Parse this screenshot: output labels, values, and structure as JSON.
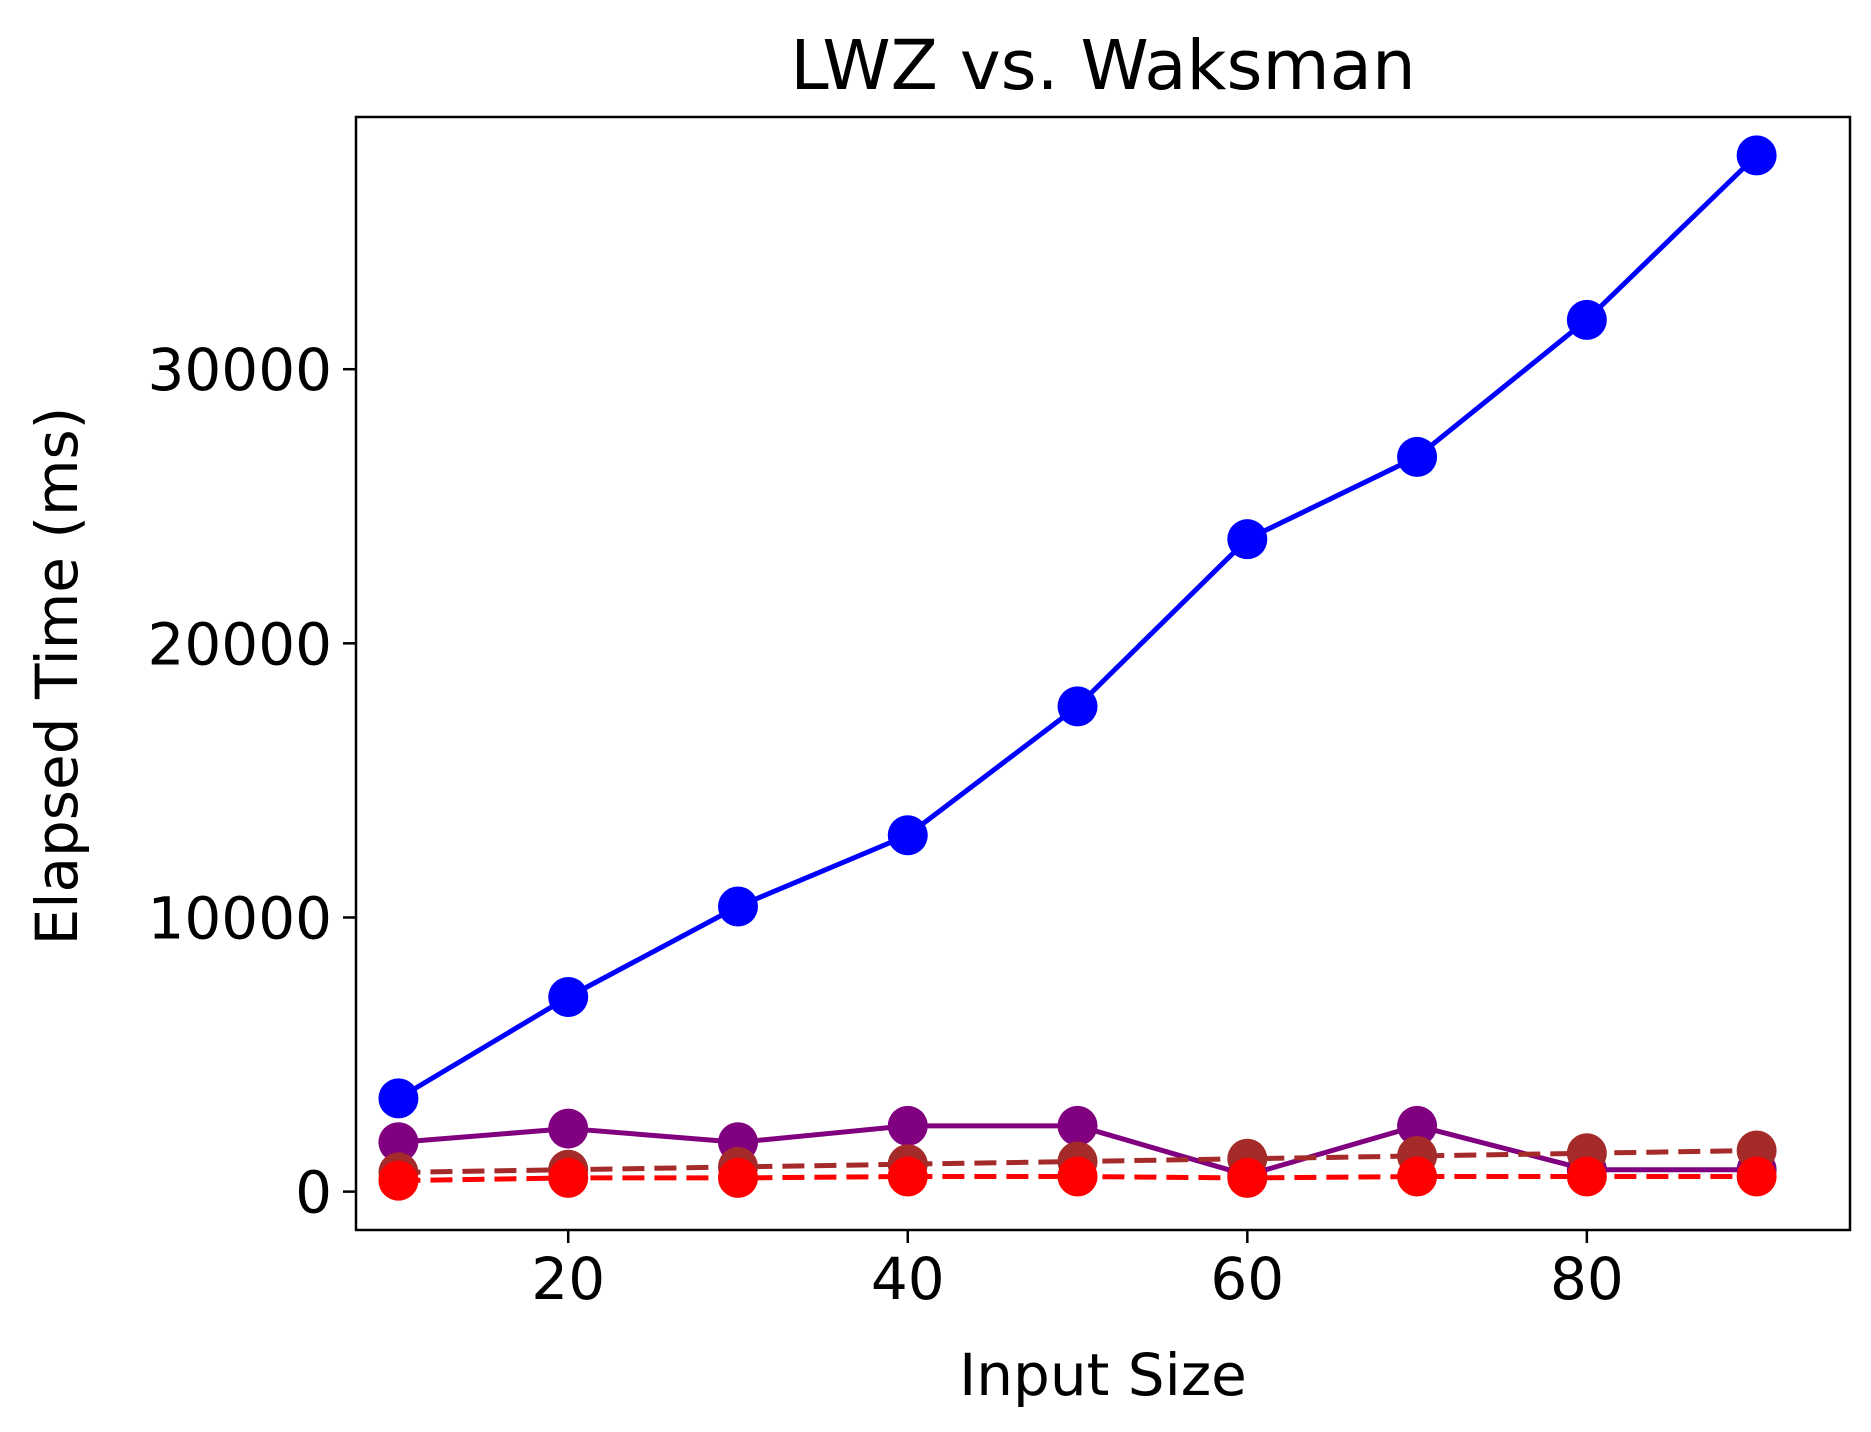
{
  "chart_data": {
    "type": "line",
    "title": "LWZ vs. Waksman",
    "xlabel": "Input Size",
    "ylabel": "Elapsed Time (ms)",
    "x": [
      10,
      20,
      30,
      40,
      50,
      60,
      70,
      80,
      90
    ],
    "xlim": [
      7.5,
      95.5
    ],
    "ylim": [
      -1400,
      39200
    ],
    "xticks": [
      20,
      40,
      60,
      80
    ],
    "xtick_labels": [
      "20",
      "40",
      "60",
      "80"
    ],
    "yticks": [
      0,
      10000,
      20000,
      30000
    ],
    "ytick_labels": [
      "0",
      "10000",
      "20000",
      "30000"
    ],
    "grid": false,
    "legend": "none",
    "series": [
      {
        "color": "#0000ff",
        "line_style": "solid",
        "marker": "circle",
        "values": [
          3400,
          7100,
          10400,
          13000,
          17700,
          23800,
          26800,
          31800,
          37800
        ]
      },
      {
        "color": "#800080",
        "line_style": "solid",
        "marker": "circle",
        "values": [
          1800,
          2300,
          1800,
          2400,
          2400,
          600,
          2400,
          800,
          800
        ]
      },
      {
        "color": "#a52a2a",
        "line_style": "dashed",
        "marker": "circle",
        "values": [
          700,
          800,
          900,
          1000,
          1100,
          1200,
          1300,
          1400,
          1500
        ]
      },
      {
        "color": "#ff0000",
        "line_style": "dashed",
        "marker": "circle",
        "values": [
          400,
          500,
          500,
          550,
          550,
          500,
          550,
          550,
          550
        ]
      }
    ]
  }
}
